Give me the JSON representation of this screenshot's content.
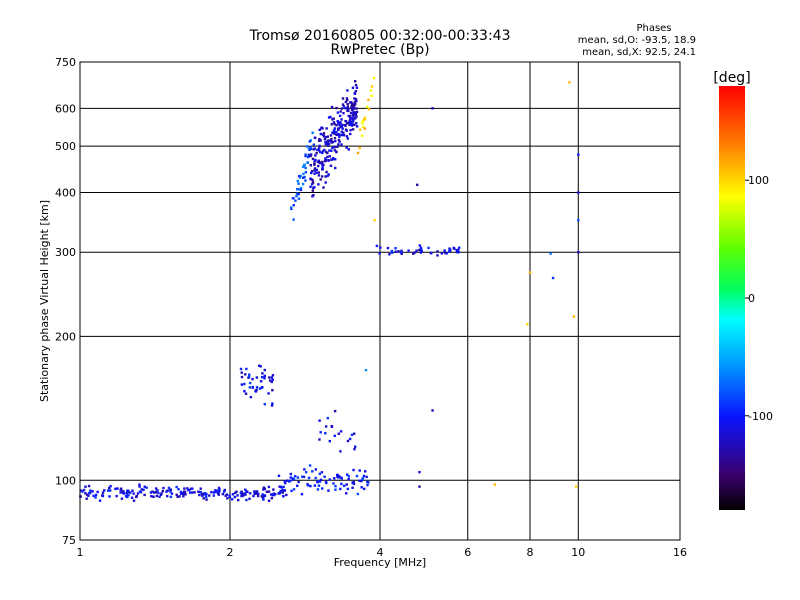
{
  "chart_data": {
    "type": "scatter",
    "title": "Tromsø 20160805 00:32:00-00:33:43",
    "subtitle": "RwPretec (Bp)",
    "xlabel": "Frequency [MHz]",
    "ylabel": "Stationary phase Virtual Height [km]",
    "x_scale": "log",
    "y_scale": "log",
    "xlim": [
      1,
      16
    ],
    "ylim": [
      75,
      750
    ],
    "x_ticks": [
      1,
      2,
      4,
      6,
      8,
      10,
      16
    ],
    "x_tick_labels": [
      "1",
      "2",
      "4",
      "6",
      "8",
      "10",
      "16"
    ],
    "y_ticks": [
      75,
      100,
      200,
      300,
      400,
      500,
      600,
      750
    ],
    "y_tick_labels": [
      "75",
      "100",
      "200",
      "300",
      "400",
      "500",
      "600",
      "750"
    ],
    "grid": true,
    "stats": {
      "header": "Phases",
      "line1": "mean, sd,O: -93.5, 18.9",
      "line2": "mean, sd,X:  92.5, 24.1"
    },
    "colorbar": {
      "label": "[deg]",
      "range": [
        -180,
        180
      ],
      "ticks": [
        100,
        0,
        -100
      ],
      "tick_labels": [
        "100",
        "0",
        "-100"
      ]
    },
    "clusters": [
      {
        "x_range": [
          1.0,
          2.6
        ],
        "y_center": 94,
        "y_spread": 3,
        "phase": -110,
        "count": 220
      },
      {
        "x_range": [
          2.5,
          3.8
        ],
        "y_center": 100,
        "y_spread": 6,
        "phase": -100,
        "count": 90
      },
      {
        "x_range": [
          2.1,
          2.45
        ],
        "y_center": 160,
        "y_spread": 15,
        "phase": -105,
        "count": 45
      },
      {
        "x_range": [
          2.65,
          2.95
        ],
        "y_center": 440,
        "y_spread": 30,
        "phase": -80,
        "count": 50
      },
      {
        "x_range": [
          2.9,
          3.6
        ],
        "y_center": 520,
        "y_spread": 70,
        "phase": -120,
        "count": 260
      },
      {
        "x_range": [
          3.6,
          3.9
        ],
        "y_center": 580,
        "y_spread": 30,
        "phase": 100,
        "count": 18
      },
      {
        "x_range": [
          3.9,
          5.8
        ],
        "y_center": 302,
        "y_spread": 6,
        "phase": -110,
        "count": 45
      },
      {
        "x_range": [
          3.0,
          3.6
        ],
        "y_center": 125,
        "y_spread": 12,
        "phase": -110,
        "count": 20
      }
    ],
    "sparse_points": [
      {
        "x": 5.1,
        "y": 600,
        "phase": -120
      },
      {
        "x": 4.75,
        "y": 415,
        "phase": -130
      },
      {
        "x": 3.9,
        "y": 350,
        "phase": 100
      },
      {
        "x": 3.75,
        "y": 170,
        "phase": -60
      },
      {
        "x": 5.1,
        "y": 140,
        "phase": -120
      },
      {
        "x": 9.6,
        "y": 680,
        "phase": 110
      },
      {
        "x": 10.0,
        "y": 480,
        "phase": -100
      },
      {
        "x": 10.0,
        "y": 400,
        "phase": -110
      },
      {
        "x": 10.0,
        "y": 350,
        "phase": -80
      },
      {
        "x": 10.0,
        "y": 300,
        "phase": -120
      },
      {
        "x": 8.8,
        "y": 298,
        "phase": -70
      },
      {
        "x": 8.9,
        "y": 265,
        "phase": -90
      },
      {
        "x": 8.0,
        "y": 272,
        "phase": 110
      },
      {
        "x": 7.9,
        "y": 212,
        "phase": 100
      },
      {
        "x": 9.8,
        "y": 220,
        "phase": 110
      },
      {
        "x": 9.9,
        "y": 97,
        "phase": 100
      },
      {
        "x": 6.8,
        "y": 98,
        "phase": 110
      },
      {
        "x": 4.8,
        "y": 104,
        "phase": -120
      },
      {
        "x": 4.8,
        "y": 97,
        "phase": -130
      }
    ]
  }
}
